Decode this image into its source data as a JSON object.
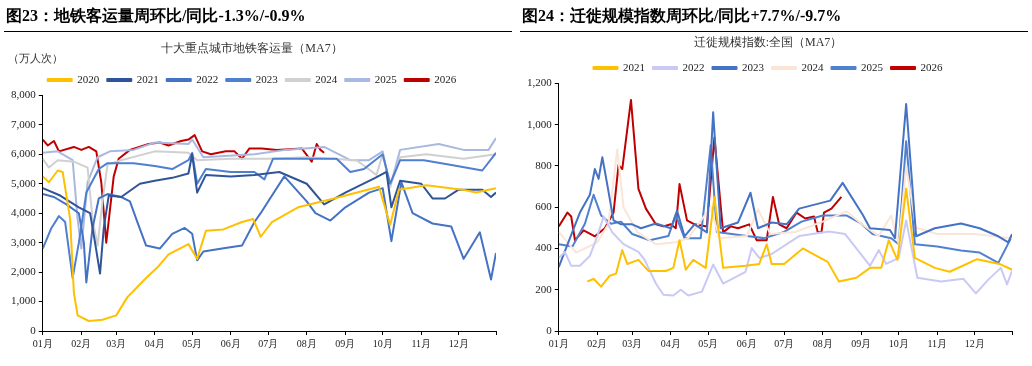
{
  "chart_data": [
    {
      "type": "line",
      "title": "图23：地铁客运量周环比/同比-1.3%/-0.9%",
      "subtitle": "十大重点城市地铁客运量（MA7）",
      "ylabel": "（万人次）",
      "xlim": [
        "--01-01",
        "--12-31"
      ],
      "xticks": [
        {
          "value": "--01-01",
          "label": "01月"
        },
        {
          "value": "--02-01",
          "label": "02月"
        },
        {
          "value": "--03-01",
          "label": "03月"
        },
        {
          "value": "--04-01",
          "label": "04月"
        },
        {
          "value": "--05-01",
          "label": "05月"
        },
        {
          "value": "--06-01",
          "label": "06月"
        },
        {
          "value": "--07-01",
          "label": "07月"
        },
        {
          "value": "--08-01",
          "label": "08月"
        },
        {
          "value": "--09-01",
          "label": "09月"
        },
        {
          "value": "--10-01",
          "label": "10月"
        },
        {
          "value": "--11-01",
          "label": "11月"
        },
        {
          "value": "--12-01",
          "label": "12月"
        },
        {
          "value": "--12-31",
          "label": null
        }
      ],
      "ylim": [
        0,
        8000
      ],
      "yticks": [
        0,
        {
          "value": 1000,
          "label": "1,000"
        },
        {
          "value": 2000,
          "label": "2,000"
        },
        {
          "value": 3000,
          "label": "3,000"
        },
        {
          "value": 4000,
          "label": "4,000"
        },
        {
          "value": 5000,
          "label": "5,000"
        },
        {
          "value": 6000,
          "label": "6,000"
        },
        {
          "value": 7000,
          "label": "7,000"
        },
        {
          "value": 8000,
          "label": "8,000"
        }
      ],
      "legend": "top",
      "marker": "none",
      "line_style": "solid",
      "series": [
        {
          "name": "2020",
          "color": "#ffc000",
          "x": [
            "--01-01",
            "--01-06",
            "--01-13",
            "--01-17",
            "--01-23",
            "--01-26",
            "--01-29",
            "--02-07",
            "--02-18",
            "--03-01",
            "--03-10",
            "--03-25",
            "--04-04",
            "--04-12",
            "--04-28",
            "--05-05",
            "--05-12",
            "--05-26",
            "--06-10",
            "--06-19",
            "--06-25",
            "--07-04",
            "--07-25",
            "--08-23",
            "--09-28",
            "--10-07",
            "--10-14",
            "--11-05",
            "--12-04",
            "--12-15",
            "--12-31"
          ],
          "values": [
            5250,
            5050,
            5450,
            5400,
            3800,
            1300,
            530,
            340,
            380,
            530,
            1150,
            1800,
            2200,
            2600,
            2950,
            2450,
            3400,
            3450,
            3700,
            3800,
            3200,
            3700,
            4200,
            4500,
            4900,
            3600,
            4800,
            4950,
            4800,
            4700,
            4850
          ]
        },
        {
          "name": "2021",
          "color": "#2f5597",
          "x": [
            "--01-01",
            "--01-15",
            "--01-30",
            "--02-08",
            "--02-12",
            "--02-16",
            "--02-19",
            "--02-23",
            "--03-05",
            "--03-20",
            "--04-01",
            "--04-15",
            "--04-28",
            "--05-01",
            "--05-05",
            "--05-12",
            "--06-01",
            "--06-20",
            "--07-10",
            "--08-01",
            "--08-15",
            "--09-01",
            "--09-25",
            "--10-04",
            "--10-08",
            "--10-15",
            "--11-01",
            "--11-10",
            "--11-20",
            "--12-01",
            "--12-20",
            "--12-27",
            "--12-31"
          ],
          "values": [
            4850,
            4600,
            4200,
            4000,
            3000,
            1950,
            3500,
            4600,
            4550,
            5000,
            5100,
            5200,
            5350,
            6000,
            4700,
            5300,
            5250,
            5300,
            5400,
            5000,
            4300,
            4700,
            5200,
            5400,
            4200,
            5100,
            5000,
            4500,
            4500,
            4800,
            4800,
            4550,
            4700
          ]
        },
        {
          "name": "2022",
          "color": "#4472c4",
          "x": [
            "--01-01",
            "--01-10",
            "--01-20",
            "--01-30",
            "--02-03",
            "--02-05",
            "--02-10",
            "--02-15",
            "--02-22",
            "--03-05",
            "--03-12",
            "--03-18",
            "--03-25",
            "--04-05",
            "--04-15",
            "--04-25",
            "--05-01",
            "--05-05",
            "--05-10",
            "--05-25",
            "--06-10",
            "--06-20",
            "--06-25",
            "--07-01",
            "--07-14",
            "--08-01",
            "--08-08",
            "--08-20",
            "--09-01",
            "--09-20",
            "--10-01",
            "--10-08",
            "--10-16",
            "--10-25",
            "--11-10",
            "--11-25",
            "--12-05",
            "--12-18",
            "--12-27",
            "--12-31"
          ],
          "values": [
            4650,
            4550,
            4300,
            4000,
            3000,
            1650,
            3500,
            4500,
            4650,
            4550,
            4400,
            3700,
            2900,
            2800,
            3300,
            3500,
            3300,
            2400,
            2700,
            2800,
            2900,
            3700,
            4000,
            4400,
            5250,
            4400,
            4000,
            3750,
            4200,
            4700,
            4850,
            3050,
            5050,
            4000,
            3650,
            3550,
            2450,
            3350,
            1750,
            2650
          ]
        },
        {
          "name": "2023",
          "color": "#4f7fd0",
          "x": [
            "--01-01",
            "--01-08",
            "--01-14",
            "--01-19",
            "--01-25",
            "--01-30",
            "--02-05",
            "--02-15",
            "--02-22",
            "--03-15",
            "--04-01",
            "--04-15",
            "--04-28",
            "--05-01",
            "--05-05",
            "--05-12",
            "--06-01",
            "--06-20",
            "--06-28",
            "--07-05",
            "--08-25",
            "--09-05",
            "--09-16",
            "--10-01",
            "--10-07",
            "--10-15",
            "--11-03",
            "--11-23",
            "--12-20",
            "--12-31"
          ],
          "values": [
            2800,
            3500,
            3900,
            3700,
            1800,
            3000,
            4700,
            5500,
            5700,
            5700,
            5600,
            5500,
            5800,
            6050,
            5000,
            5500,
            5400,
            5400,
            5150,
            5850,
            5850,
            5400,
            5500,
            6000,
            5000,
            5800,
            5800,
            5650,
            5450,
            6050
          ]
        },
        {
          "name": "2024",
          "color": "#d0d0d0",
          "x": [
            "--01-01",
            "--01-06",
            "--01-13",
            "--01-26",
            "--02-06",
            "--02-10",
            "--02-14",
            "--02-18",
            "--02-22",
            "--03-05",
            "--04-01",
            "--04-28",
            "--05-05",
            "--06-01",
            "--07-01",
            "--08-01",
            "--09-10",
            "--09-26",
            "--10-01",
            "--10-07",
            "--10-15",
            "--11-05",
            "--12-05",
            "--12-31"
          ],
          "values": [
            5850,
            5550,
            5800,
            5750,
            5550,
            3800,
            2900,
            4400,
            5650,
            5800,
            6100,
            6050,
            5800,
            5850,
            5850,
            5900,
            5800,
            5300,
            6000,
            4900,
            5900,
            6000,
            5850,
            6000
          ]
        },
        {
          "name": "2025",
          "color": "#a9b8e0",
          "x": [
            "--01-01",
            "--01-13",
            "--01-25",
            "--01-29",
            "--02-01",
            "--02-06",
            "--02-14",
            "--02-24",
            "--03-15",
            "--04-01",
            "--04-28",
            "--05-01",
            "--05-10",
            "--06-20",
            "--07-15",
            "--08-15",
            "--09-05",
            "--09-20",
            "--10-01",
            "--10-07",
            "--10-15",
            "--11-15",
            "--12-05",
            "--12-25",
            "--12-31"
          ],
          "values": [
            6050,
            6100,
            5800,
            3800,
            2800,
            5050,
            5900,
            6100,
            6150,
            6400,
            6350,
            6500,
            5900,
            6000,
            6150,
            6250,
            5800,
            5800,
            6100,
            4900,
            6150,
            6350,
            6150,
            6150,
            6550
          ]
        },
        {
          "name": "2026",
          "color": "#c00000",
          "x": [
            "--01-01",
            "--01-05",
            "--01-10",
            "--01-14",
            "--01-26",
            "--02-01",
            "--02-07",
            "--02-13",
            "--02-17",
            "--02-21",
            "--02-27",
            "--03-03",
            "--03-12",
            "--03-27",
            "--04-05",
            "--04-12",
            "--04-22",
            "--04-28",
            "--05-03",
            "--05-09",
            "--05-16",
            "--05-28",
            "--06-04",
            "--06-10",
            "--06-16",
            "--06-26",
            "--07-08",
            "--07-28",
            "--08-05",
            "--08-09",
            "--08-12",
            "--08-15"
          ],
          "values": [
            6500,
            6300,
            6450,
            6100,
            6250,
            6150,
            6250,
            6100,
            5050,
            3000,
            5250,
            5850,
            6150,
            6350,
            6400,
            6300,
            6450,
            6500,
            6650,
            6100,
            6000,
            6100,
            6100,
            5850,
            6200,
            6200,
            6150,
            6200,
            5750,
            6350,
            6150,
            6050
          ]
        }
      ]
    },
    {
      "type": "line",
      "title": "图24：迁徙规模指数周环比/同比+7.7%/-9.7%",
      "subtitle": "迁徙规模指数:全国（MA7）",
      "xlim": [
        "--01-01",
        "--12-31"
      ],
      "xticks": [
        {
          "value": "--01-01",
          "label": "01月"
        },
        {
          "value": "--02-01",
          "label": "02月"
        },
        {
          "value": "--03-01",
          "label": "03月"
        },
        {
          "value": "--04-01",
          "label": "04月"
        },
        {
          "value": "--05-01",
          "label": "05月"
        },
        {
          "value": "--06-01",
          "label": "06月"
        },
        {
          "value": "--07-01",
          "label": "07月"
        },
        {
          "value": "--08-01",
          "label": "08月"
        },
        {
          "value": "--09-01",
          "label": "09月"
        },
        {
          "value": "--10-01",
          "label": "10月"
        },
        {
          "value": "--11-01",
          "label": "11月"
        },
        {
          "value": "--12-01",
          "label": "12月"
        },
        {
          "value": "--12-31",
          "label": null
        }
      ],
      "ylim": [
        0,
        1200
      ],
      "yticks": [
        0,
        200,
        400,
        600,
        800,
        {
          "value": 1000,
          "label": "1,000"
        },
        {
          "value": 1200,
          "label": "1,200"
        }
      ],
      "legend": "top",
      "marker": "none",
      "line_style": "solid",
      "series": [
        {
          "name": "2021",
          "color": "#ffc000",
          "x": [
            "--01-24",
            "--01-29",
            "--02-04",
            "--02-11",
            "--02-16",
            "--02-21",
            "--02-25",
            "--03-06",
            "--03-14",
            "--03-28",
            "--04-03",
            "--04-08",
            "--04-13",
            "--04-19",
            "--04-29",
            "--05-06",
            "--05-13",
            "--05-31",
            "--06-11",
            "--06-17",
            "--06-21",
            "--07-01",
            "--07-16",
            "--08-05",
            "--08-14",
            "--08-28",
            "--09-08",
            "--09-17",
            "--09-23",
            "--09-30",
            "--10-07",
            "--10-14",
            "--10-30",
            "--11-11",
            "--12-03",
            "--12-21",
            "--12-31"
          ],
          "values": [
            240,
            253,
            215,
            268,
            278,
            392,
            325,
            345,
            291,
            291,
            306,
            440,
            297,
            345,
            306,
            650,
            306,
            316,
            325,
            420,
            325,
            325,
            400,
            335,
            240,
            258,
            306,
            306,
            440,
            345,
            690,
            354,
            306,
            287,
            348,
            325,
            297
          ]
        },
        {
          "name": "2022",
          "color": "#c9c9f5",
          "x": [
            "--01-01",
            "--01-06",
            "--01-11",
            "--01-18",
            "--01-26",
            "--02-01",
            "--02-06",
            "--02-13",
            "--02-22",
            "--03-06",
            "--03-11",
            "--03-20",
            "--03-26",
            "--04-03",
            "--04-09",
            "--04-15",
            "--04-26",
            "--05-05",
            "--05-13",
            "--05-31",
            "--06-05",
            "--06-11",
            "--06-21",
            "--07-13",
            "--08-06",
            "--08-19",
            "--09-08",
            "--09-15",
            "--09-21",
            "--10-01",
            "--10-07",
            "--10-16",
            "--11-04",
            "--11-22",
            "--12-02",
            "--12-12",
            "--12-22",
            "--12-27",
            "--12-31"
          ],
          "values": [
            354,
            383,
            316,
            316,
            364,
            460,
            555,
            478,
            421,
            383,
            345,
            230,
            176,
            172,
            200,
            172,
            191,
            322,
            230,
            287,
            402,
            354,
            373,
            460,
            482,
            470,
            316,
            392,
            325,
            354,
            536,
            258,
            240,
            253,
            182,
            249,
            306,
            226,
            291
          ]
        },
        {
          "name": "2023",
          "color": "#4472c4",
          "x": [
            "--01-01",
            "--01-10",
            "--01-18",
            "--01-26",
            "--01-30",
            "--02-02",
            "--02-05",
            "--02-09",
            "--02-14",
            "--02-20",
            "--03-01",
            "--03-08",
            "--03-20",
            "--04-01",
            "--04-06",
            "--04-12",
            "--04-20",
            "--04-30",
            "--05-05",
            "--05-11",
            "--05-25",
            "--06-04",
            "--06-10",
            "--06-21",
            "--07-03",
            "--07-13",
            "--08-07",
            "--08-17",
            "--09-02",
            "--09-08",
            "--09-24",
            "--09-28",
            "--10-07",
            "--10-15",
            "--10-30",
            "--11-20",
            "--12-05",
            "--12-20",
            "--12-28",
            "--12-31"
          ],
          "values": [
            310,
            450,
            574,
            660,
            785,
            737,
            842,
            708,
            536,
            517,
            517,
            498,
            521,
            498,
            584,
            459,
            517,
            478,
            1060,
            498,
            526,
            670,
            498,
            526,
            517,
            593,
            632,
            718,
            565,
            498,
            490,
            450,
            1100,
            459,
            498,
            521,
            498,
            459,
            430,
            469
          ]
        },
        {
          "name": "2024",
          "color": "#fbe5d6",
          "x": [
            "--01-01",
            "--01-15",
            "--02-01",
            "--02-10",
            "--02-17",
            "--02-22",
            "--03-05",
            "--03-20",
            "--04-05",
            "--04-15",
            "--05-03",
            "--05-10",
            "--06-01",
            "--06-10",
            "--06-20",
            "--07-10",
            "--08-01",
            "--08-20",
            "--09-01",
            "--09-15",
            "--09-25",
            "--10-01",
            "--10-07",
            "--10-15",
            "--11-01",
            "--12-01",
            "--12-31"
          ],
          "values": [
            480,
            380,
            430,
            520,
            880,
            600,
            480,
            420,
            430,
            450,
            600,
            450,
            460,
            590,
            470,
            480,
            530,
            580,
            520,
            460,
            560,
            420,
            800,
            500,
            470,
            470,
            450
          ]
        },
        {
          "name": "2025",
          "color": "#5080d0",
          "x": [
            "--01-01",
            "--01-12",
            "--01-22",
            "--01-29",
            "--02-04",
            "--02-12",
            "--02-20",
            "--03-01",
            "--03-15",
            "--03-30",
            "--04-05",
            "--04-12",
            "--04-25",
            "--05-03",
            "--05-08",
            "--05-20",
            "--06-01",
            "--06-15",
            "--07-01",
            "--07-15",
            "--08-01",
            "--08-20",
            "--09-01",
            "--09-10",
            "--09-25",
            "--10-01",
            "--10-07",
            "--10-14",
            "--11-01",
            "--11-20",
            "--12-05",
            "--12-20",
            "--12-31"
          ],
          "values": [
            420,
            410,
            520,
            660,
            560,
            520,
            530,
            470,
            440,
            460,
            560,
            450,
            450,
            900,
            480,
            470,
            460,
            450,
            480,
            530,
            560,
            560,
            520,
            470,
            450,
            420,
            920,
            420,
            410,
            390,
            380,
            330,
            460
          ]
        },
        {
          "name": "2026",
          "color": "#c00000",
          "x": [
            "--01-01",
            "--01-08",
            "--01-11",
            "--01-14",
            "--01-21",
            "--01-30",
            "--02-07",
            "--02-14",
            "--02-18",
            "--02-21",
            "--02-28",
            "--03-06",
            "--03-12",
            "--03-20",
            "--03-26",
            "--04-01",
            "--04-05",
            "--04-08",
            "--04-14",
            "--04-20",
            "--04-30",
            "--05-06",
            "--05-13",
            "--05-19",
            "--05-25",
            "--06-03",
            "--06-09",
            "--06-17",
            "--06-22",
            "--06-27",
            "--07-03",
            "--07-11",
            "--07-18",
            "--07-25",
            "--07-28",
            "--07-31",
            "--08-02",
            "--08-08",
            "--08-16"
          ],
          "values": [
            507,
            574,
            555,
            440,
            488,
            459,
            498,
            574,
            804,
            785,
            1120,
            689,
            593,
            517,
            507,
            517,
            498,
            712,
            536,
            517,
            507,
            938,
            478,
            507,
            498,
            517,
            440,
            440,
            650,
            517,
            498,
            574,
            545,
            555,
            478,
            478,
            574,
            593,
            650
          ]
        }
      ]
    }
  ]
}
